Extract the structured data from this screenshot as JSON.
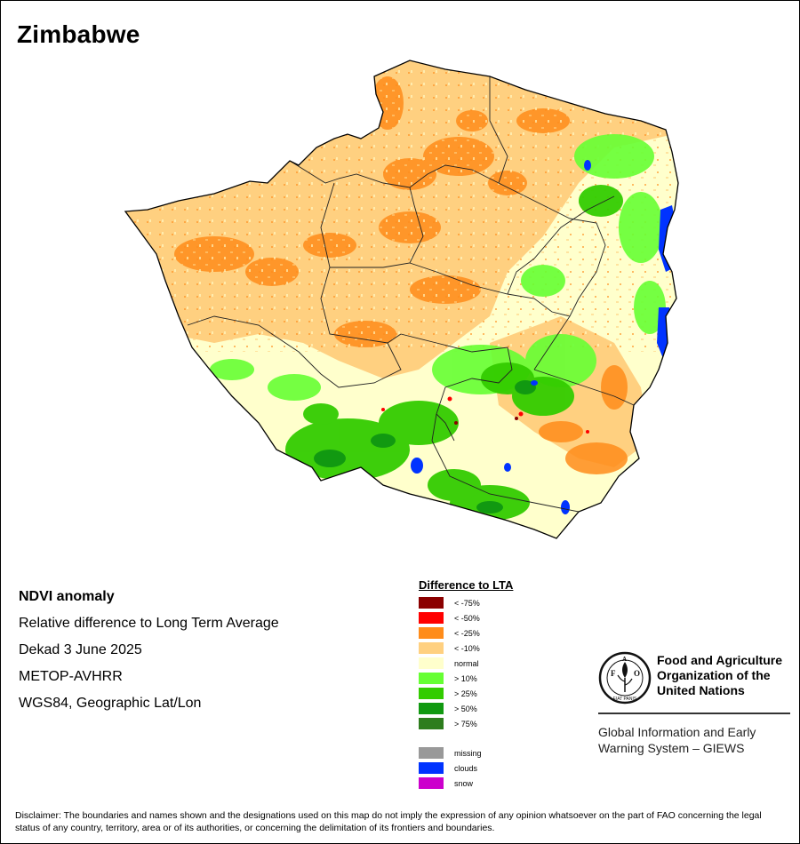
{
  "title": "Zimbabwe",
  "info": {
    "lines": [
      "NDVI anomaly",
      "Relative difference to Long Term Average",
      "Dekad 3 June 2025",
      "METOP-AVHRR",
      "WGS84, Geographic Lat/Lon"
    ]
  },
  "legend": {
    "title": "Difference to LTA",
    "items": [
      {
        "label": "< -75%",
        "color": "#8b0000"
      },
      {
        "label": "< -50%",
        "color": "#ff0000"
      },
      {
        "label": "< -25%",
        "color": "#ff8c1a"
      },
      {
        "label": "< -10%",
        "color": "#ffd080"
      },
      {
        "label": "normal",
        "color": "#ffffcc"
      },
      {
        "label": "> 10%",
        "color": "#66ff33"
      },
      {
        "label": "> 25%",
        "color": "#33cc00"
      },
      {
        "label": "> 50%",
        "color": "#119911"
      },
      {
        "label": "> 75%",
        "color": "#2e7d1e"
      }
    ],
    "extra": [
      {
        "label": "missing",
        "color": "#999999"
      },
      {
        "label": "clouds",
        "color": "#0033ff"
      },
      {
        "label": "snow",
        "color": "#cc00cc"
      }
    ]
  },
  "fao": {
    "name_lines": [
      "Food and Agriculture",
      "Organization of the",
      "United Nations"
    ],
    "logo_letters": [
      "F",
      "A",
      "O"
    ],
    "logo_text": "FIAT PANIS",
    "giews_lines": [
      "Global Information and Early",
      "Warning System – GIEWS"
    ]
  },
  "disclaimer": "Disclaimer: The boundaries and names shown and the designations used on this map do not imply the expression of any opinion whatsoever on the part of FAO concerning the legal status of any country, territory, area or of its authorities, or concerning the delimitation of its frontiers and boundaries."
}
